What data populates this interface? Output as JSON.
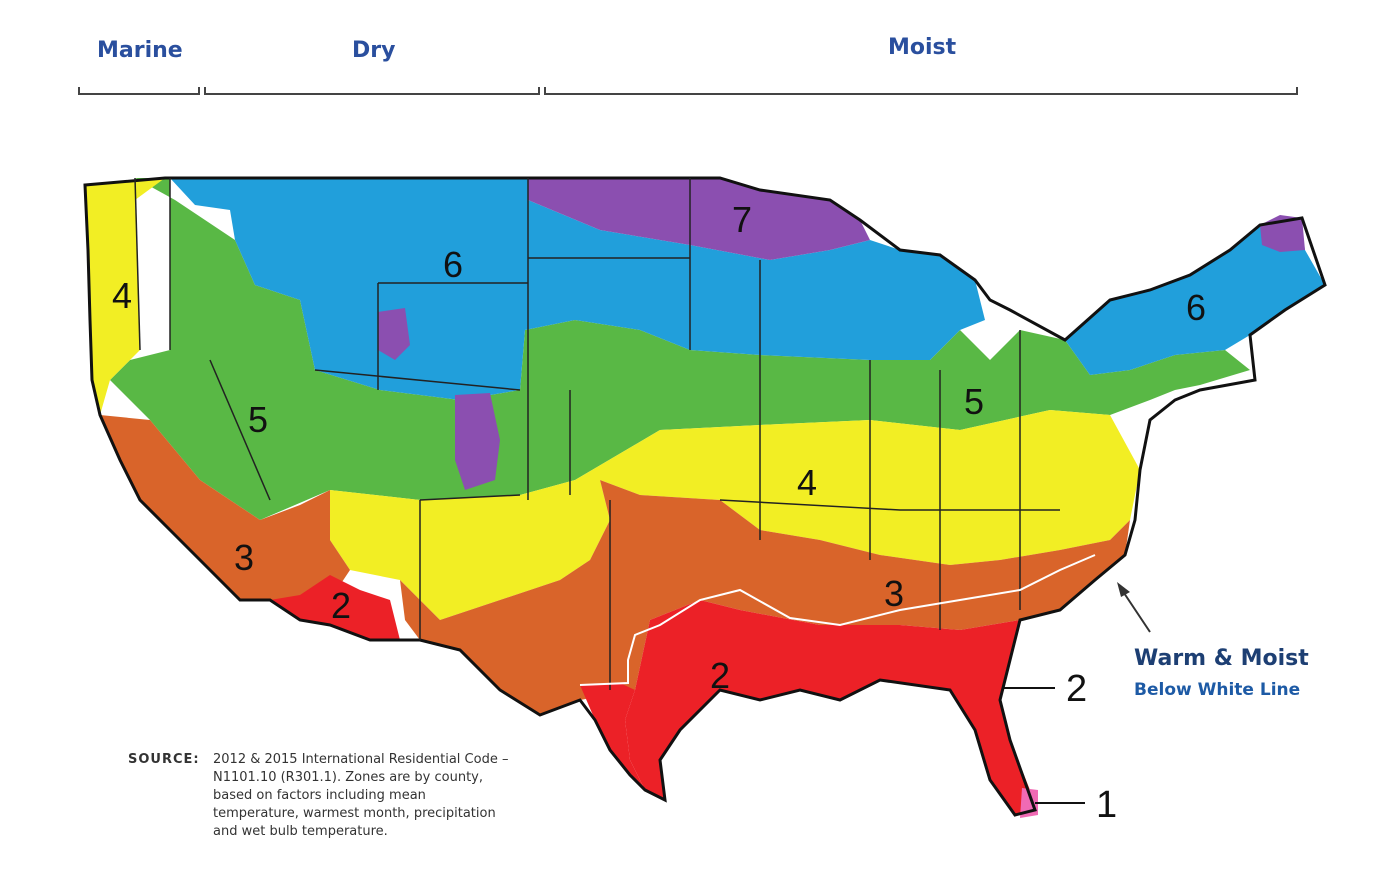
{
  "regions": {
    "marine": "Marine",
    "dry": "Dry",
    "moist": "Moist"
  },
  "zones": {
    "z1": "1",
    "z2": "2",
    "z3": "3",
    "z4": "4",
    "z5": "5",
    "z6": "6",
    "z7": "7"
  },
  "colors": {
    "zone1": "#f06ab4",
    "zone2": "#ec2127",
    "zone3": "#d9642a",
    "zone4": "#f2ee24",
    "zone5": "#59b845",
    "zone6": "#219fdb",
    "zone7": "#8b4fb0",
    "heading": "#2a4f9e"
  },
  "warm_moist": {
    "title": "Warm & Moist",
    "subtitle": "Below White Line"
  },
  "source": {
    "label": "SOURCE:",
    "text": "2012 & 2015 International Residential Code – N1101.10 (R301.1). Zones are by county, based on factors including mean temperature, warmest month, precipitation and wet bulb temperature."
  }
}
